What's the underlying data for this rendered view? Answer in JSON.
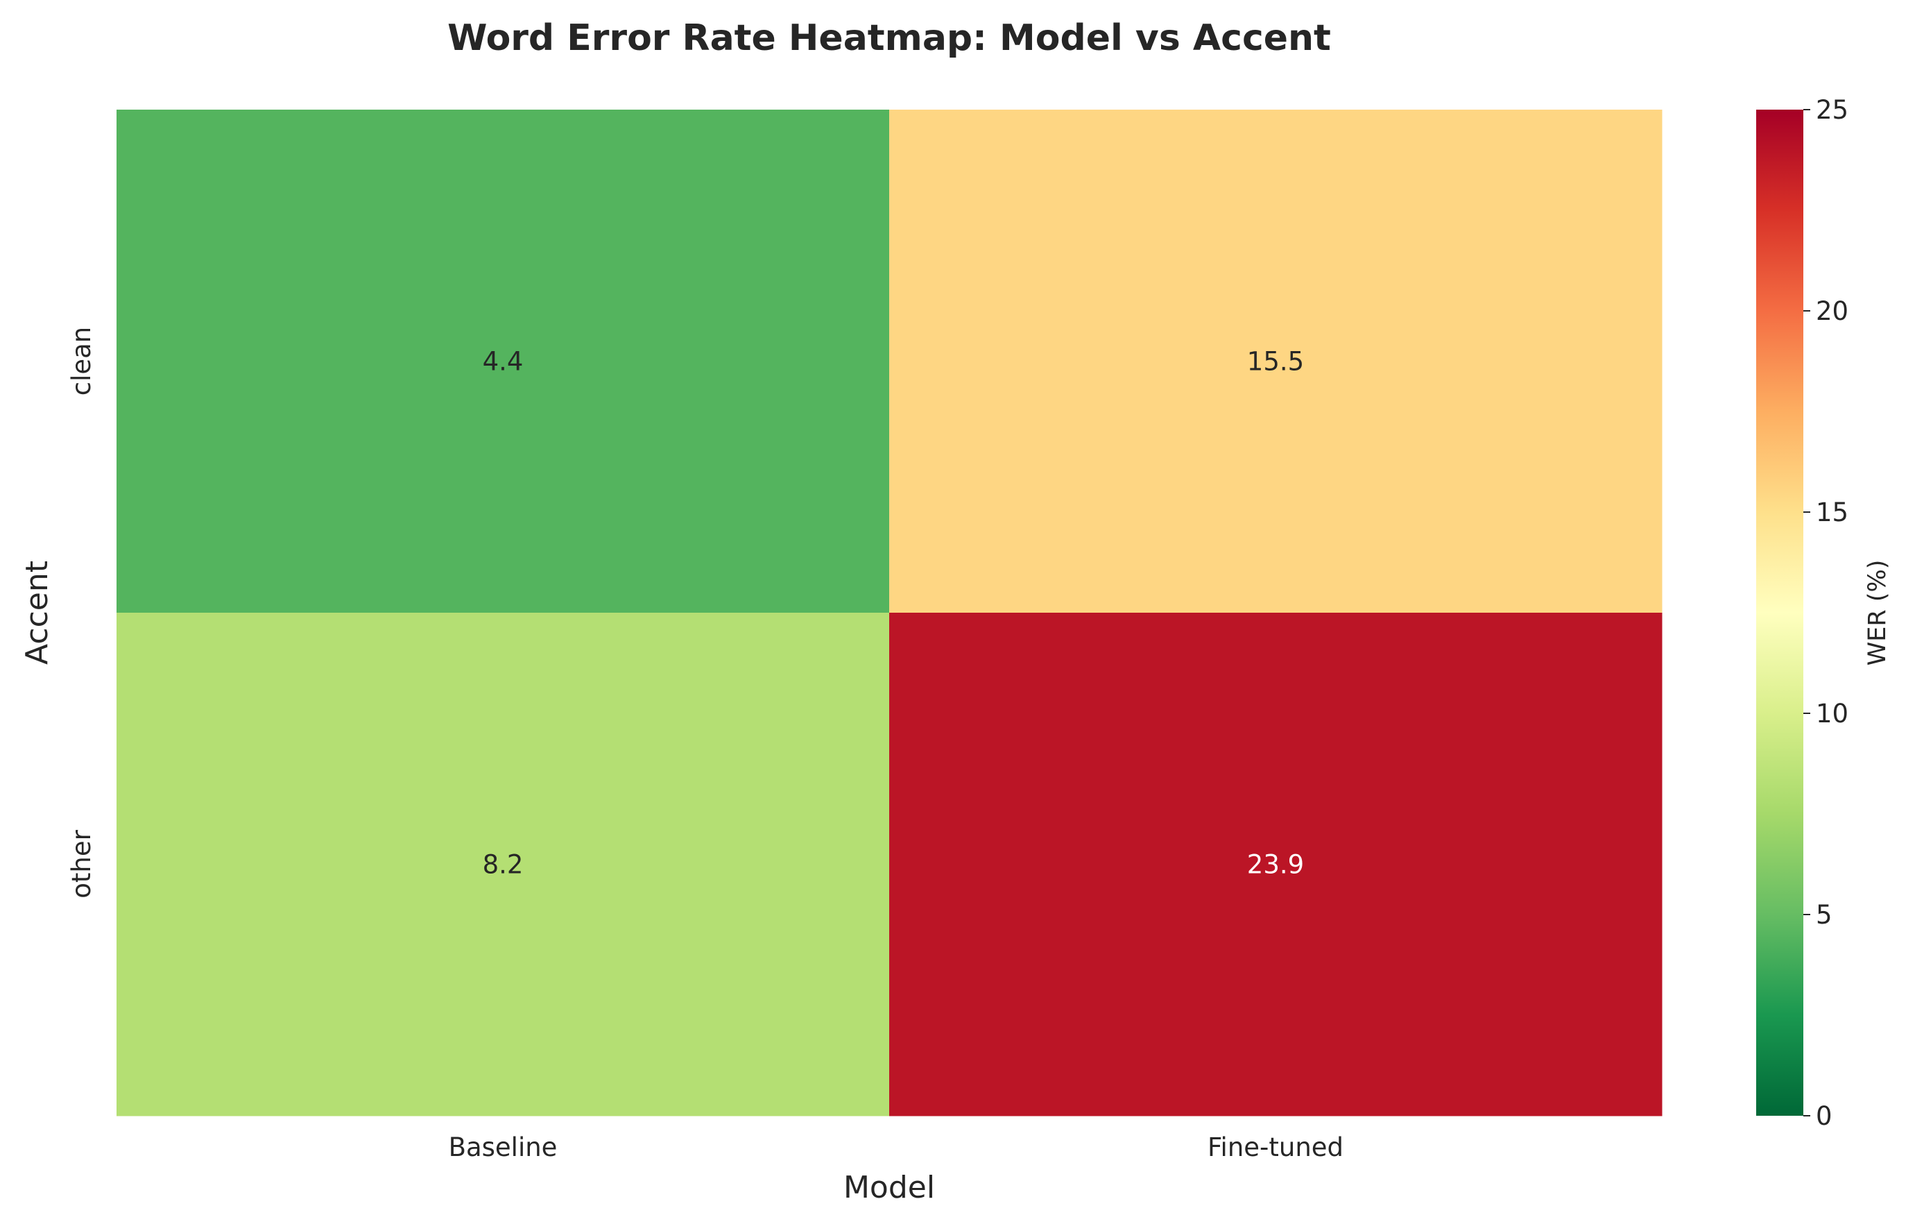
{
  "chart_data": {
    "type": "heatmap",
    "title": "Word Error Rate Heatmap: Model vs Accent",
    "xlabel": "Model",
    "ylabel": "Accent",
    "x_categories": [
      "Baseline",
      "Fine-tuned"
    ],
    "y_categories": [
      "clean",
      "other"
    ],
    "values": [
      [
        4.4,
        15.5
      ],
      [
        8.2,
        23.9
      ]
    ],
    "value_labels": [
      [
        "4.4",
        "15.5"
      ],
      [
        "8.2",
        "23.9"
      ]
    ],
    "colorbar": {
      "label": "WER (%)",
      "range": [
        0,
        25
      ],
      "ticks": [
        0,
        5,
        10,
        15,
        20,
        25
      ],
      "tick_labels": [
        "0",
        "5",
        "10",
        "15",
        "20",
        "25"
      ],
      "colormap": "RdYlGn_r",
      "stops": [
        "#006837",
        "#1a9850",
        "#66bd63",
        "#a6d96a",
        "#d9ef8b",
        "#ffffbf",
        "#fee08b",
        "#fdae61",
        "#f46d43",
        "#d73027",
        "#a50026"
      ]
    },
    "grid": false,
    "legend": "colorbar-right"
  }
}
